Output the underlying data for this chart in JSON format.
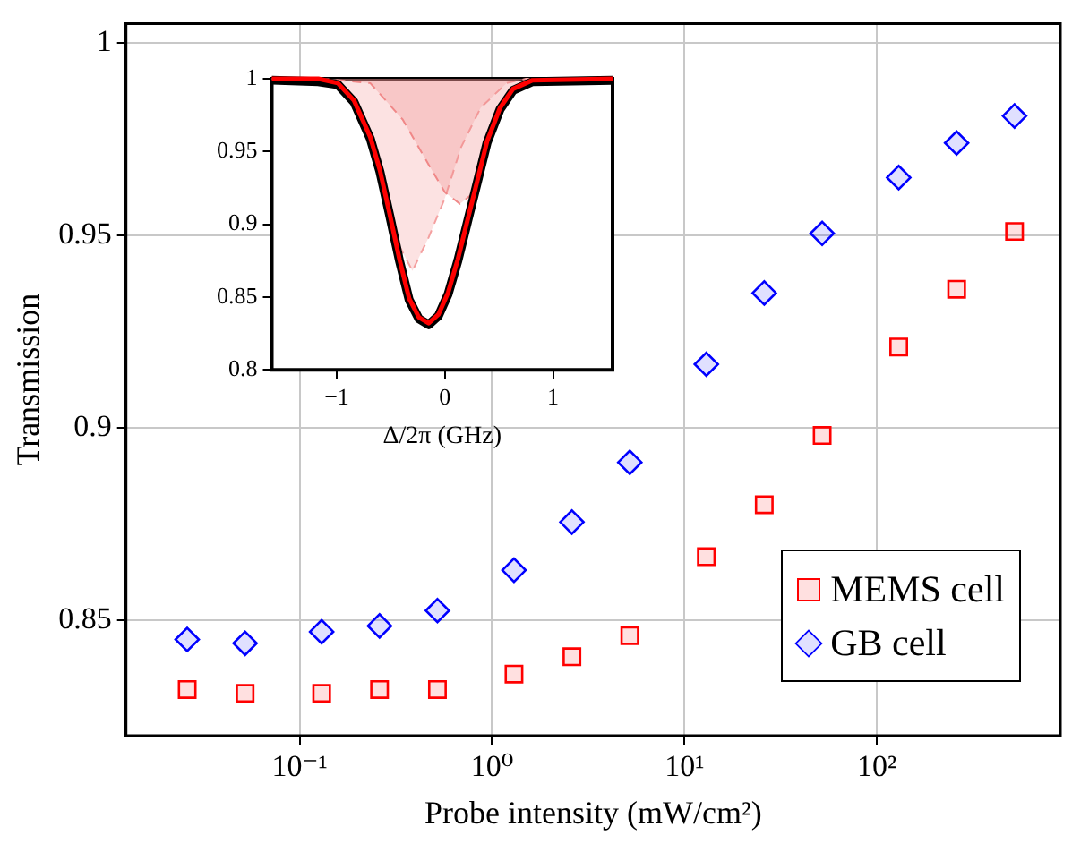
{
  "chart_data": [
    {
      "type": "scatter",
      "xlabel": "Probe intensity (mW/cm²)",
      "ylabel": "Transmission",
      "log": "x",
      "grid": true,
      "legend": "bottom right",
      "xlim": [
        0.0125,
        900
      ],
      "xticks": [
        {
          "value": 0.1,
          "label": "10⁻¹"
        },
        {
          "value": 1,
          "label": "10⁰"
        },
        {
          "value": 10,
          "label": "10¹"
        },
        {
          "value": 100,
          "label": "10²"
        }
      ],
      "ylim": [
        0.82,
        1.005
      ],
      "yticks": [
        0.85,
        0.9,
        0.95,
        1
      ],
      "x": [
        0.026,
        0.052,
        0.13,
        0.26,
        0.52,
        1.3,
        2.6,
        5.2,
        13,
        26,
        52,
        130,
        260,
        520
      ],
      "series": [
        {
          "name": "MEMS cell",
          "color": "#ff0000",
          "marker": "square",
          "values": [
            0.832,
            0.831,
            0.831,
            0.832,
            0.832,
            0.836,
            0.8405,
            0.846,
            0.8665,
            0.88,
            0.898,
            0.921,
            0.936,
            0.951
          ]
        },
        {
          "name": "GB cell",
          "color": "#0000ff",
          "marker": "diamond",
          "values": [
            0.845,
            0.844,
            0.847,
            0.8485,
            0.8525,
            0.863,
            0.8755,
            0.891,
            0.9165,
            0.935,
            0.9505,
            0.965,
            0.974,
            0.981
          ]
        }
      ]
    },
    {
      "type": "line",
      "xlabel": "Δ/2π (GHz)",
      "marker": "none",
      "xlim": [
        -1.6,
        1.55
      ],
      "xticks": [
        {
          "value": -1,
          "label": "−1"
        },
        0,
        1
      ],
      "ylim": [
        0.8,
        1
      ],
      "yticks": [
        0.8,
        0.85,
        0.9,
        0.95,
        1
      ],
      "series": [
        {
          "type": "area",
          "color": "#f4a0a0",
          "line_style": "dashed",
          "x": [
            -1.6,
            -1.11,
            -0.84,
            -0.69,
            -0.6,
            -0.51,
            -0.42,
            -0.3,
            -0.15,
            0,
            0.15,
            0.33,
            0.57,
            0.75,
            1.55
          ],
          "values": [
            1,
            1,
            0.985,
            0.96,
            0.937,
            0.907,
            0.885,
            0.868,
            0.891,
            0.918,
            0.953,
            0.98,
            0.997,
            1,
            1
          ]
        },
        {
          "type": "area",
          "color": "#f08888",
          "line_style": "dashed",
          "x": [
            -1.6,
            -1.11,
            -0.69,
            -0.39,
            -0.15,
            0,
            0.14,
            0.27,
            0.39,
            0.51,
            0.63,
            0.81,
            0.99,
            1.55
          ],
          "values": [
            1,
            1,
            0.997,
            0.972,
            0.941,
            0.922,
            0.914,
            0.922,
            0.957,
            0.98,
            0.993,
            0.999,
            1,
            1
          ]
        },
        {
          "color": "#000000",
          "x": [
            -1.6,
            -1.17,
            -0.99,
            -0.84,
            -0.69,
            -0.6,
            -0.51,
            -0.42,
            -0.33,
            -0.24,
            -0.15,
            -0.06,
            0.03,
            0.12,
            0.21,
            0.3,
            0.39,
            0.51,
            0.63,
            0.81,
            1.55
          ],
          "values": [
            0.999,
            0.998,
            0.996,
            0.984,
            0.959,
            0.936,
            0.906,
            0.875,
            0.848,
            0.835,
            0.831,
            0.837,
            0.852,
            0.875,
            0.902,
            0.929,
            0.956,
            0.979,
            0.992,
            0.998,
            0.999
          ]
        },
        {
          "color": "#ff0000",
          "x": [
            -1.6,
            -1.17,
            -0.99,
            -0.84,
            -0.69,
            -0.6,
            -0.51,
            -0.42,
            -0.33,
            -0.24,
            -0.15,
            -0.06,
            0.03,
            0.12,
            0.21,
            0.3,
            0.39,
            0.51,
            0.63,
            0.81,
            1.55
          ],
          "values": [
            1,
            1,
            0.997,
            0.985,
            0.96,
            0.937,
            0.907,
            0.876,
            0.849,
            0.836,
            0.832,
            0.838,
            0.853,
            0.876,
            0.903,
            0.93,
            0.957,
            0.98,
            0.993,
            0.999,
            1
          ]
        }
      ]
    }
  ]
}
